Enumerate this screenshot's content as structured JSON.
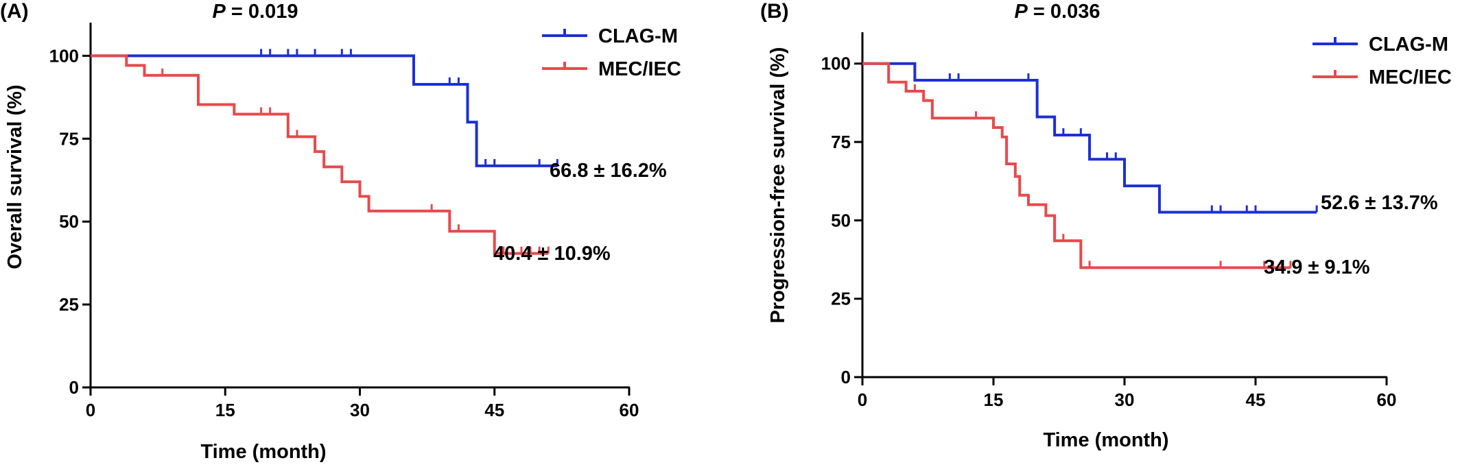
{
  "colors": {
    "clagm": "#1c2fd6",
    "meciec": "#e8494c",
    "axis": "#000000"
  },
  "chart_data": [
    {
      "type": "line",
      "step": true,
      "panel_label": "(A)",
      "title": "P = 0.019",
      "title_p": "P",
      "title_rest": " = 0.019",
      "xlabel": "Time (month)",
      "ylabel": "Overall survival (%)",
      "xlim": [
        0,
        60
      ],
      "ylim": [
        0,
        110
      ],
      "xticks": [
        0,
        15,
        30,
        45,
        60
      ],
      "xtick_labels": [
        "0",
        "15",
        "30",
        "45",
        "60"
      ],
      "yticks": [
        0,
        25,
        50,
        75,
        100
      ],
      "ytick_labels": [
        "0",
        "25",
        "50",
        "75",
        "100"
      ],
      "legend_position": "top-right",
      "series": [
        {
          "name": "CLAG-M",
          "color_key": "clagm",
          "steps": [
            [
              0,
              100
            ],
            [
              36,
              91.4
            ],
            [
              42,
              80.0
            ],
            [
              43,
              66.8
            ],
            [
              52,
              66.8
            ]
          ],
          "censors": [
            [
              19,
              100
            ],
            [
              20,
              100
            ],
            [
              22,
              100
            ],
            [
              23,
              100
            ],
            [
              25,
              100
            ],
            [
              28,
              100
            ],
            [
              29,
              100
            ],
            [
              40,
              91.4
            ],
            [
              41,
              91.4
            ],
            [
              44,
              66.8
            ],
            [
              45,
              66.8
            ],
            [
              50,
              66.8
            ],
            [
              52,
              66.8
            ]
          ],
          "end_label": "66.8 ± 16.2%"
        },
        {
          "name": "MEC/IEC",
          "color_key": "meciec",
          "steps": [
            [
              0,
              100
            ],
            [
              4,
              97.1
            ],
            [
              6,
              94.1
            ],
            [
              12,
              85.3
            ],
            [
              16,
              82.4
            ],
            [
              22,
              75.6
            ],
            [
              25,
              71.1
            ],
            [
              26,
              66.5
            ],
            [
              28,
              62.0
            ],
            [
              30,
              57.6
            ],
            [
              31,
              53.2
            ],
            [
              40,
              47.1
            ],
            [
              45,
              40.4
            ],
            [
              51,
              40.4
            ]
          ],
          "censors": [
            [
              8,
              94.1
            ],
            [
              19,
              82.4
            ],
            [
              20,
              82.4
            ],
            [
              23,
              75.6
            ],
            [
              38,
              53.2
            ],
            [
              41,
              47.1
            ],
            [
              46,
              40.4
            ],
            [
              47,
              40.4
            ],
            [
              48,
              40.4
            ],
            [
              49,
              40.4
            ],
            [
              50,
              40.4
            ],
            [
              51,
              40.4
            ]
          ],
          "end_label": "40.4 ± 10.9%"
        }
      ]
    },
    {
      "type": "line",
      "step": true,
      "panel_label": "(B)",
      "title": "P = 0.036",
      "title_p": "P",
      "title_rest": " = 0.036",
      "xlabel": "Time (month)",
      "ylabel": "Progression-free survival (%)",
      "xlim": [
        0,
        60
      ],
      "ylim": [
        0,
        110
      ],
      "xticks": [
        0,
        15,
        30,
        45,
        60
      ],
      "xtick_labels": [
        "0",
        "15",
        "30",
        "45",
        "60"
      ],
      "yticks": [
        0,
        25,
        50,
        75,
        100
      ],
      "ytick_labels": [
        "0",
        "25",
        "50",
        "75",
        "100"
      ],
      "legend_position": "top-right",
      "series": [
        {
          "name": "CLAG-M",
          "color_key": "clagm",
          "steps": [
            [
              0,
              100
            ],
            [
              6,
              94.7
            ],
            [
              20,
              83.0
            ],
            [
              22,
              77.2
            ],
            [
              26,
              69.5
            ],
            [
              30,
              61.0
            ],
            [
              34,
              52.6
            ],
            [
              52,
              52.6
            ]
          ],
          "censors": [
            [
              10,
              94.7
            ],
            [
              11,
              94.7
            ],
            [
              19,
              94.7
            ],
            [
              23,
              77.2
            ],
            [
              25,
              77.2
            ],
            [
              28,
              69.5
            ],
            [
              29,
              69.5
            ],
            [
              40,
              52.6
            ],
            [
              41,
              52.6
            ],
            [
              44,
              52.6
            ],
            [
              45,
              52.6
            ],
            [
              52,
              52.6
            ]
          ],
          "end_label": "52.6 ± 13.7%"
        },
        {
          "name": "MEC/IEC",
          "color_key": "meciec",
          "steps": [
            [
              0,
              100
            ],
            [
              3,
              94.1
            ],
            [
              5,
              91.2
            ],
            [
              7,
              88.2
            ],
            [
              8,
              82.6
            ],
            [
              15,
              79.6
            ],
            [
              16,
              76.6
            ],
            [
              16.5,
              68.0
            ],
            [
              17.5,
              64.0
            ],
            [
              18,
              58.0
            ],
            [
              19,
              55.0
            ],
            [
              21,
              51.5
            ],
            [
              22,
              43.5
            ],
            [
              25,
              34.9
            ],
            [
              49,
              34.9
            ]
          ],
          "censors": [
            [
              6,
              91.2
            ],
            [
              13,
              82.6
            ],
            [
              23,
              43.5
            ],
            [
              26,
              34.9
            ],
            [
              41,
              34.9
            ],
            [
              46,
              34.9
            ],
            [
              47,
              34.9
            ],
            [
              48,
              34.9
            ],
            [
              49,
              34.9
            ]
          ],
          "end_label": "34.9 ± 9.1%"
        }
      ]
    }
  ]
}
